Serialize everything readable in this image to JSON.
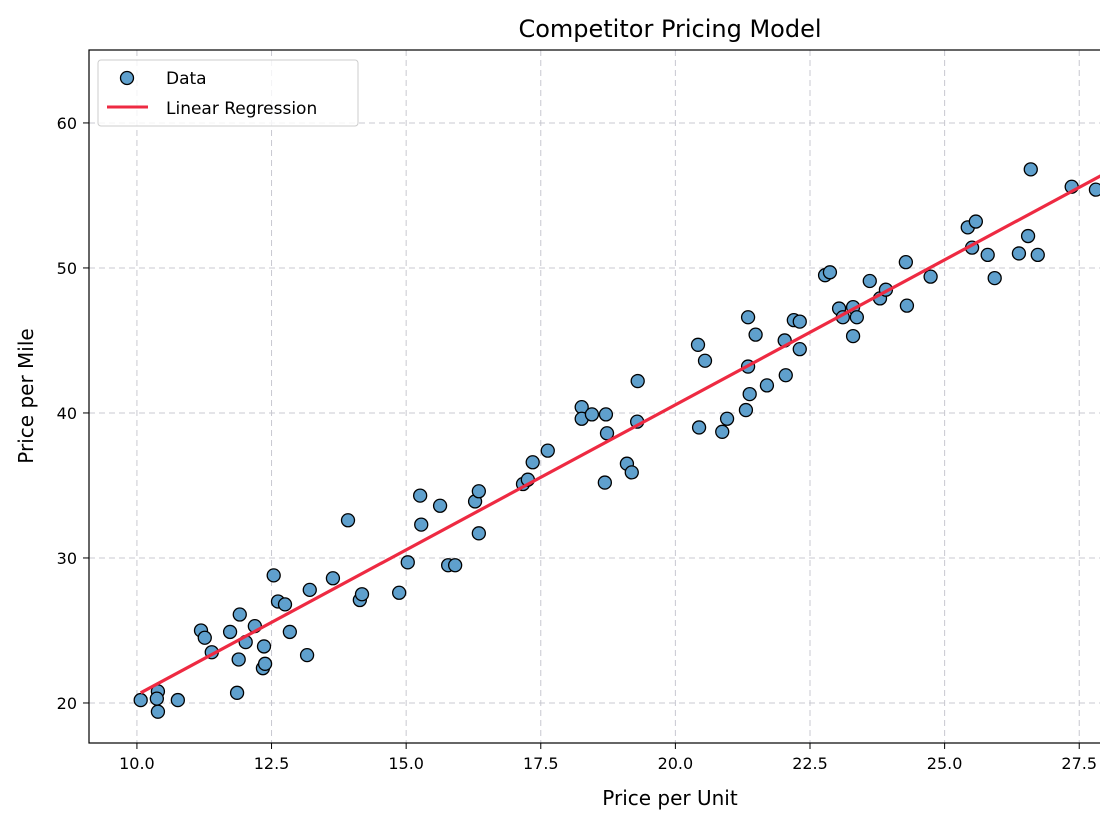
{
  "chart_data": {
    "type": "scatter",
    "title": "Competitor Pricing Model",
    "xlabel": "Price per Unit",
    "ylabel": "Price per Mile",
    "xlim": [
      9.11,
      30.69
    ],
    "ylim": [
      17.24,
      65.03
    ],
    "xticks": [
      10.0,
      12.5,
      15.0,
      17.5,
      20.0,
      22.5,
      25.0,
      27.5
    ],
    "xtick_labels": [
      "10.0",
      "12.5",
      "15.0",
      "17.5",
      "20.0",
      "22.5",
      "25.0",
      "27.5"
    ],
    "yticks": [
      20,
      30,
      40,
      50,
      60
    ],
    "ytick_labels": [
      "20",
      "30",
      "40",
      "50",
      "60"
    ],
    "grid": true,
    "legend_placement": "top-left",
    "series": [
      {
        "name": "Data",
        "kind": "scatter",
        "color": "#5fa0cd",
        "edge_color": "#000000",
        "x": [
          10.07,
          10.39,
          10.37,
          10.39,
          10.76,
          11.19,
          11.26,
          11.39,
          11.73,
          11.91,
          11.89,
          11.86,
          12.02,
          12.19,
          12.34,
          12.36,
          12.38,
          12.54,
          12.62,
          12.75,
          12.84,
          13.16,
          13.21,
          13.64,
          13.92,
          14.14,
          14.18,
          14.87,
          15.03,
          15.26,
          15.28,
          15.63,
          15.78,
          15.91,
          16.28,
          16.35,
          16.35,
          17.17,
          17.26,
          17.35,
          17.63,
          18.26,
          18.26,
          18.45,
          18.71,
          18.73,
          18.69,
          19.1,
          19.19,
          19.3,
          19.29,
          20.42,
          20.55,
          20.44,
          20.87,
          20.96,
          21.31,
          21.35,
          21.35,
          21.38,
          21.49,
          21.7,
          22.03,
          22.05,
          22.2,
          22.31,
          22.31,
          22.78,
          22.87,
          23.04,
          23.11,
          23.3,
          23.3,
          23.37,
          23.61,
          23.8,
          23.91,
          24.28,
          24.3,
          24.74,
          25.43,
          25.51,
          25.58,
          25.8,
          25.93,
          26.38,
          26.55,
          26.6,
          26.73,
          27.36,
          27.81
        ],
        "y": [
          20.2,
          20.8,
          20.3,
          19.4,
          20.2,
          25.0,
          24.5,
          23.5,
          24.9,
          26.1,
          23.0,
          20.7,
          24.2,
          25.3,
          22.4,
          23.9,
          22.7,
          28.8,
          27.0,
          26.8,
          24.9,
          23.3,
          27.8,
          28.6,
          32.6,
          27.1,
          27.5,
          27.6,
          29.7,
          34.3,
          32.3,
          33.6,
          29.5,
          29.5,
          33.9,
          34.6,
          31.7,
          35.1,
          35.4,
          36.6,
          37.4,
          40.4,
          39.6,
          39.9,
          39.9,
          38.6,
          35.2,
          36.5,
          35.9,
          42.2,
          39.4,
          44.7,
          43.6,
          39.0,
          38.7,
          39.6,
          40.2,
          46.6,
          43.2,
          41.3,
          45.4,
          41.9,
          45.0,
          42.6,
          46.4,
          46.3,
          44.4,
          49.5,
          49.7,
          47.2,
          46.6,
          47.3,
          45.3,
          46.6,
          49.1,
          47.9,
          48.5,
          50.4,
          47.4,
          49.4,
          52.8,
          51.4,
          53.2,
          50.9,
          49.3,
          51.0,
          52.2,
          56.8,
          50.9,
          55.6,
          55.4
        ]
      },
      {
        "name": "Linear Regression",
        "kind": "line",
        "color": "#ee2a42",
        "slope": 2.0,
        "intercept": 0.56,
        "x_range": [
          10.07,
          30.69
        ]
      }
    ]
  }
}
